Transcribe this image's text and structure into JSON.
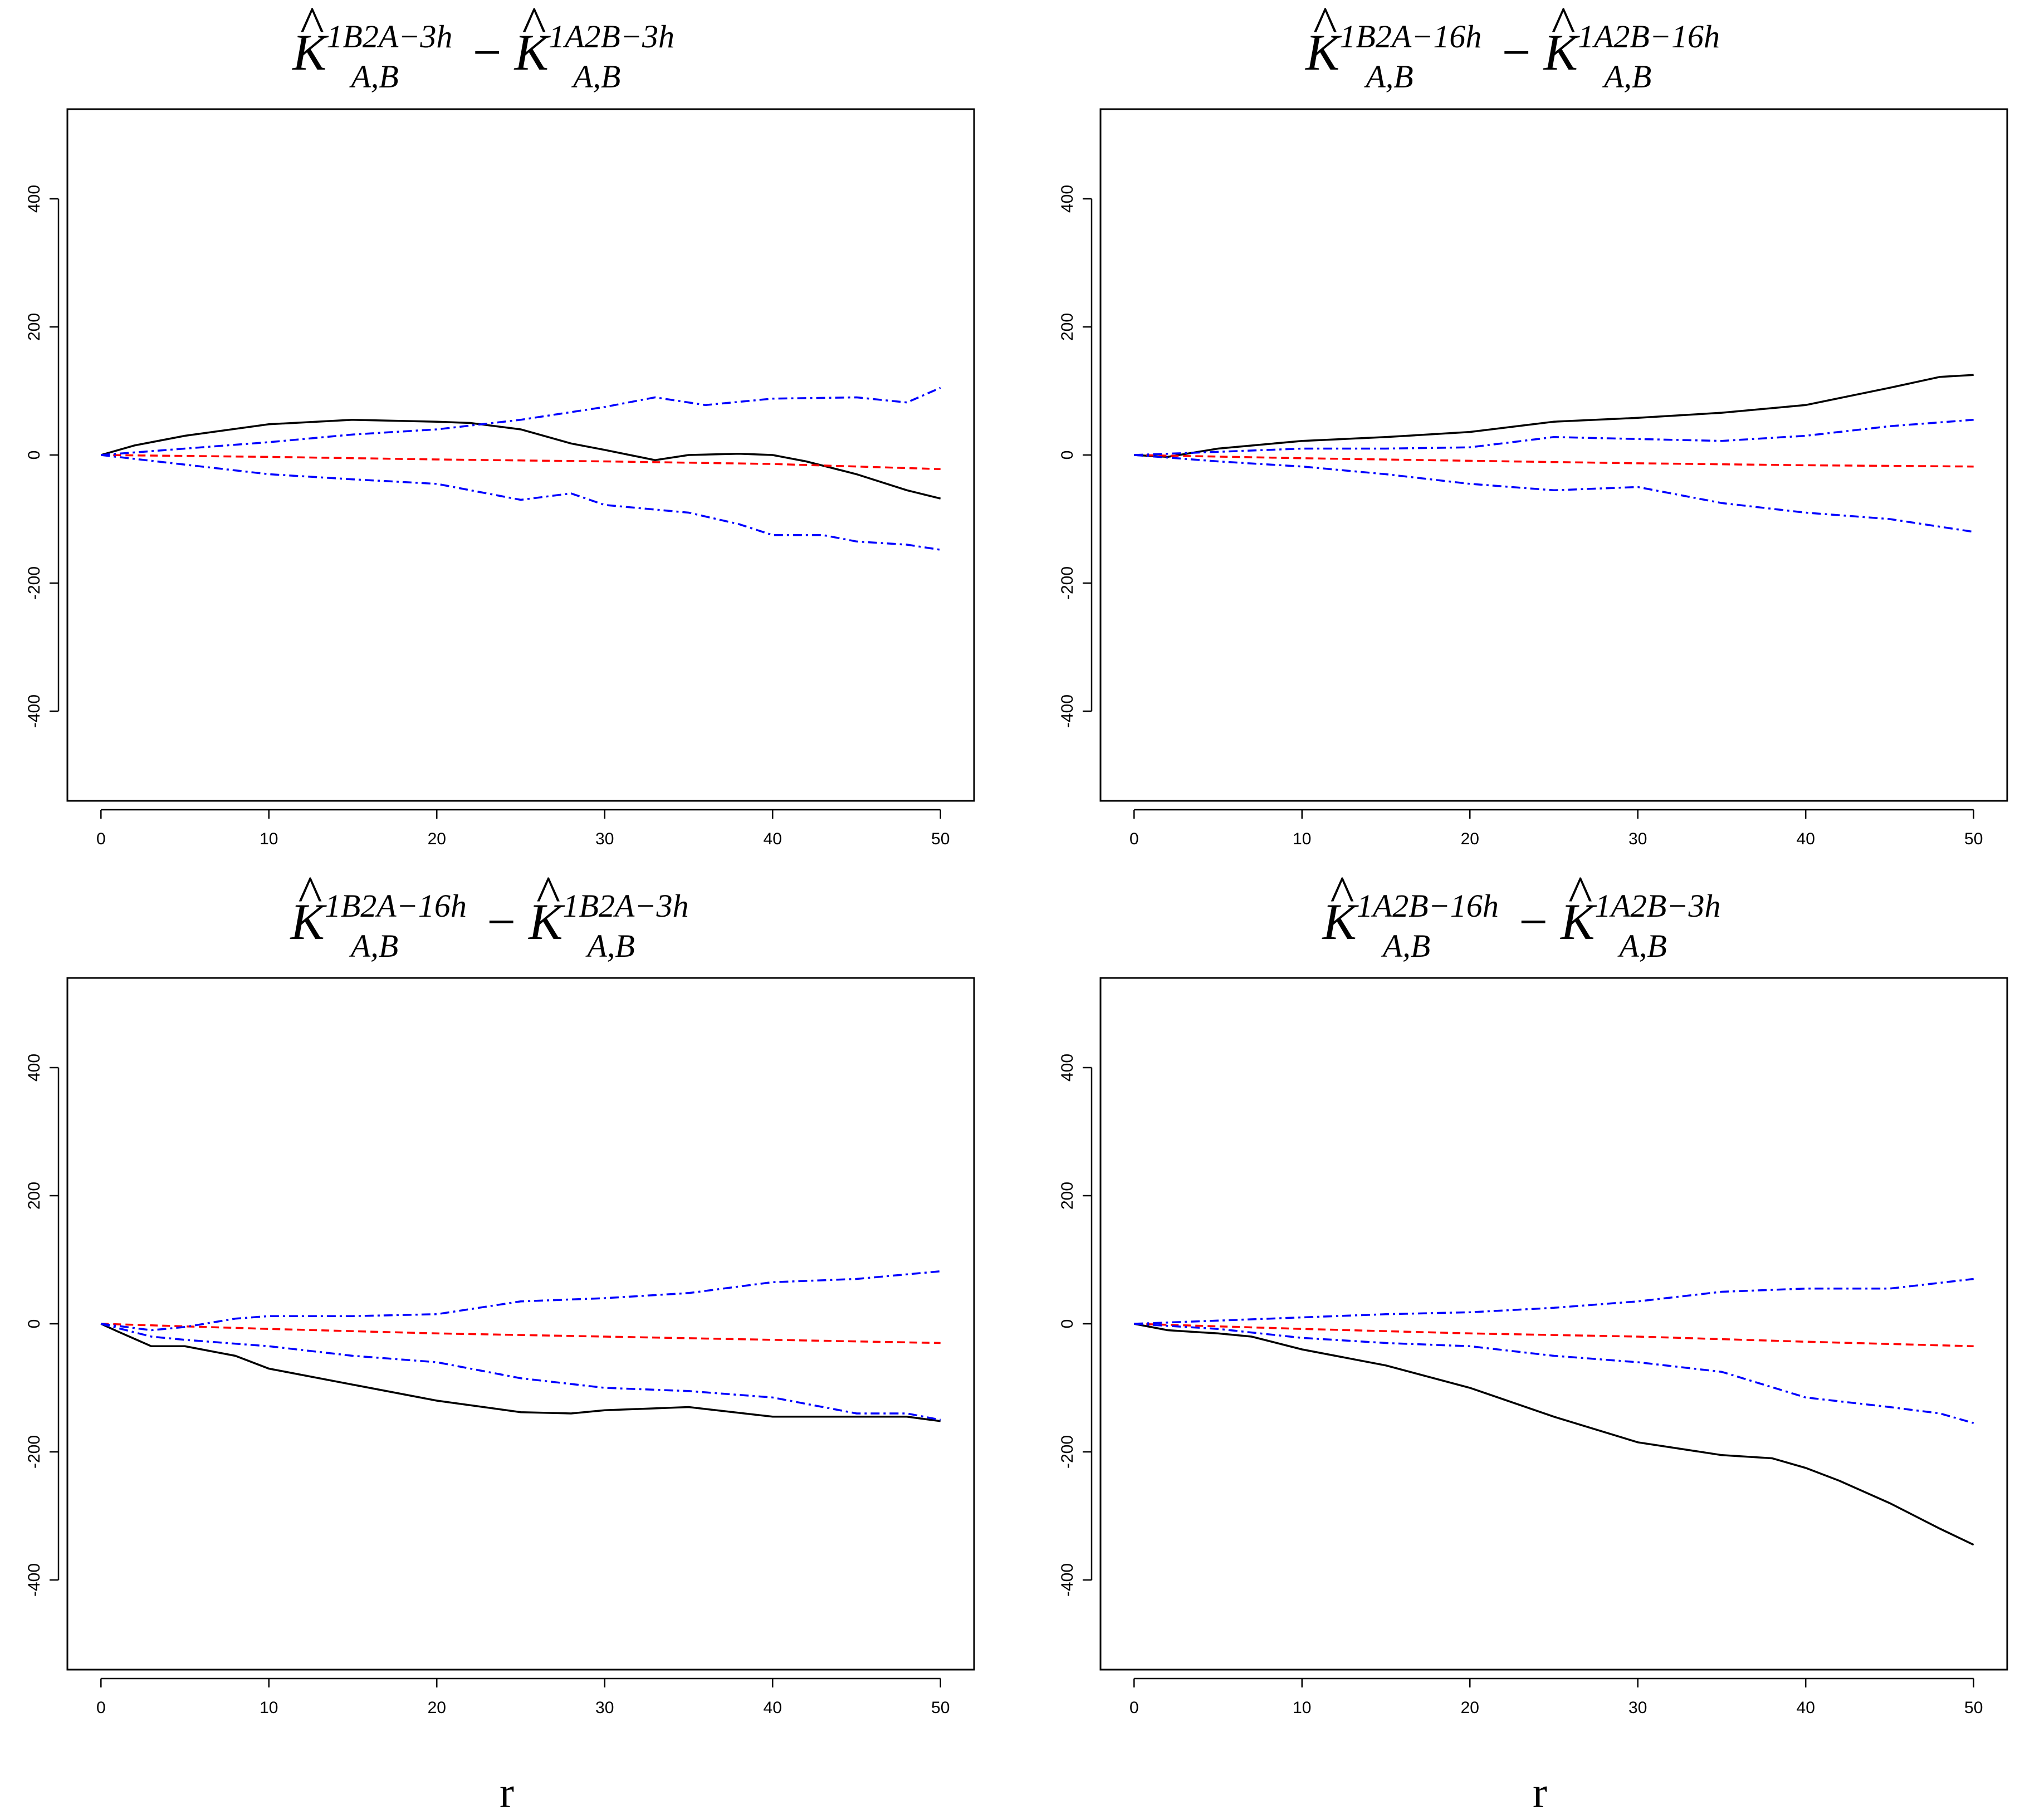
{
  "chart_data": [
    {
      "type": "line",
      "title": {
        "left_sup": "1B2A−3h",
        "right_sup": "1A2B−3h",
        "sub": "A,B",
        "letter": "K",
        "hat": "^",
        "operator": "−"
      },
      "xlabel": "",
      "ylabel": "",
      "xlim": [
        -2,
        52
      ],
      "ylim": [
        -540,
        540
      ],
      "x_ticks": [
        0,
        10,
        20,
        30,
        40,
        50
      ],
      "y_ticks": [
        -400,
        -200,
        0,
        200,
        400
      ],
      "colors": {
        "observed": "#000000",
        "mean": "#ff0000",
        "envelope": "#0000ff"
      },
      "series": [
        {
          "name": "observed",
          "style": "solid",
          "x": [
            0,
            2,
            5,
            10,
            15,
            20,
            22,
            25,
            28,
            30,
            33,
            35,
            38,
            40,
            42,
            45,
            48,
            50
          ],
          "y": [
            0,
            15,
            30,
            48,
            55,
            52,
            50,
            40,
            18,
            8,
            -8,
            0,
            2,
            0,
            -10,
            -30,
            -55,
            -68
          ]
        },
        {
          "name": "mean",
          "style": "dashed",
          "x": [
            0,
            10,
            20,
            30,
            40,
            50
          ],
          "y": [
            0,
            -3,
            -7,
            -10,
            -14,
            -22
          ]
        },
        {
          "name": "envelope-upper",
          "style": "dashdot",
          "x": [
            0,
            5,
            10,
            15,
            20,
            25,
            30,
            33,
            36,
            40,
            45,
            48,
            50
          ],
          "y": [
            0,
            10,
            20,
            32,
            40,
            55,
            75,
            90,
            78,
            88,
            90,
            82,
            105
          ]
        },
        {
          "name": "envelope-lower",
          "style": "dashdot",
          "x": [
            0,
            5,
            10,
            15,
            20,
            25,
            28,
            30,
            35,
            38,
            40,
            43,
            45,
            48,
            50
          ],
          "y": [
            0,
            -15,
            -30,
            -38,
            -45,
            -70,
            -60,
            -78,
            -90,
            -108,
            -125,
            -125,
            -135,
            -140,
            -148
          ]
        }
      ]
    },
    {
      "type": "line",
      "title": {
        "left_sup": "1B2A−16h",
        "right_sup": "1A2B−16h",
        "sub": "A,B",
        "letter": "K",
        "hat": "^",
        "operator": "−"
      },
      "xlabel": "",
      "ylabel": "",
      "xlim": [
        -2,
        52
      ],
      "ylim": [
        -540,
        540
      ],
      "x_ticks": [
        0,
        10,
        20,
        30,
        40,
        50
      ],
      "y_ticks": [
        -400,
        -200,
        0,
        200,
        400
      ],
      "colors": {
        "observed": "#000000",
        "mean": "#ff0000",
        "envelope": "#0000ff"
      },
      "series": [
        {
          "name": "observed",
          "style": "solid",
          "x": [
            0,
            2,
            5,
            10,
            15,
            20,
            25,
            30,
            35,
            40,
            45,
            48,
            50
          ],
          "y": [
            0,
            -3,
            10,
            22,
            28,
            36,
            52,
            58,
            66,
            78,
            105,
            122,
            125
          ]
        },
        {
          "name": "mean",
          "style": "dashed",
          "x": [
            0,
            10,
            20,
            30,
            40,
            50
          ],
          "y": [
            0,
            -5,
            -9,
            -13,
            -16,
            -18
          ]
        },
        {
          "name": "envelope-upper",
          "style": "dashdot",
          "x": [
            0,
            5,
            10,
            15,
            20,
            25,
            30,
            35,
            40,
            45,
            50
          ],
          "y": [
            0,
            5,
            10,
            10,
            12,
            28,
            25,
            22,
            30,
            45,
            55
          ]
        },
        {
          "name": "envelope-lower",
          "style": "dashdot",
          "x": [
            0,
            5,
            10,
            15,
            20,
            25,
            30,
            35,
            40,
            45,
            50
          ],
          "y": [
            0,
            -10,
            -18,
            -30,
            -45,
            -55,
            -50,
            -75,
            -90,
            -100,
            -120
          ]
        }
      ]
    },
    {
      "type": "line",
      "title": {
        "left_sup": "1B2A−16h",
        "right_sup": "1B2A−3h",
        "sub": "A,B",
        "letter": "K",
        "hat": "^",
        "operator": "−"
      },
      "xlabel": "r",
      "ylabel": "",
      "xlim": [
        -2,
        52
      ],
      "ylim": [
        -540,
        540
      ],
      "x_ticks": [
        0,
        10,
        20,
        30,
        40,
        50
      ],
      "y_ticks": [
        -400,
        -200,
        0,
        200,
        400
      ],
      "colors": {
        "observed": "#000000",
        "mean": "#ff0000",
        "envelope": "#0000ff"
      },
      "series": [
        {
          "name": "observed",
          "style": "solid",
          "x": [
            0,
            1,
            3,
            5,
            8,
            10,
            15,
            20,
            25,
            28,
            30,
            35,
            40,
            45,
            48,
            50
          ],
          "y": [
            0,
            -12,
            -35,
            -35,
            -50,
            -70,
            -95,
            -120,
            -138,
            -140,
            -135,
            -130,
            -145,
            -145,
            -145,
            -152
          ]
        },
        {
          "name": "mean",
          "style": "dashed",
          "x": [
            0,
            10,
            20,
            30,
            40,
            50
          ],
          "y": [
            0,
            -8,
            -15,
            -20,
            -25,
            -30
          ]
        },
        {
          "name": "envelope-upper",
          "style": "dashdot",
          "x": [
            0,
            3,
            5,
            8,
            10,
            15,
            20,
            25,
            30,
            35,
            40,
            45,
            50
          ],
          "y": [
            0,
            -10,
            -5,
            8,
            12,
            12,
            15,
            35,
            40,
            48,
            65,
            70,
            82
          ]
        },
        {
          "name": "envelope-lower",
          "style": "dashdot",
          "x": [
            0,
            3,
            5,
            10,
            15,
            20,
            25,
            30,
            35,
            40,
            45,
            48,
            50
          ],
          "y": [
            0,
            -20,
            -25,
            -35,
            -50,
            -60,
            -85,
            -100,
            -105,
            -115,
            -140,
            -140,
            -150
          ]
        }
      ]
    },
    {
      "type": "line",
      "title": {
        "left_sup": "1A2B−16h",
        "right_sup": "1A2B−3h",
        "sub": "A,B",
        "letter": "K",
        "hat": "^",
        "operator": "−"
      },
      "xlabel": "r",
      "ylabel": "",
      "xlim": [
        -2,
        52
      ],
      "ylim": [
        -540,
        540
      ],
      "x_ticks": [
        0,
        10,
        20,
        30,
        40,
        50
      ],
      "y_ticks": [
        -400,
        -200,
        0,
        200,
        400
      ],
      "colors": {
        "observed": "#000000",
        "mean": "#ff0000",
        "envelope": "#0000ff"
      },
      "series": [
        {
          "name": "observed",
          "style": "solid",
          "x": [
            0,
            2,
            5,
            7,
            10,
            15,
            20,
            25,
            30,
            35,
            38,
            40,
            42,
            45,
            48,
            50
          ],
          "y": [
            0,
            -10,
            -15,
            -20,
            -40,
            -65,
            -100,
            -145,
            -185,
            -205,
            -210,
            -225,
            -245,
            -280,
            -320,
            -345
          ]
        },
        {
          "name": "mean",
          "style": "dashed",
          "x": [
            0,
            10,
            20,
            30,
            40,
            50
          ],
          "y": [
            0,
            -8,
            -15,
            -20,
            -28,
            -35
          ]
        },
        {
          "name": "envelope-upper",
          "style": "dashdot",
          "x": [
            0,
            5,
            10,
            15,
            20,
            25,
            30,
            35,
            40,
            45,
            50
          ],
          "y": [
            0,
            5,
            10,
            15,
            18,
            25,
            35,
            50,
            55,
            55,
            70
          ]
        },
        {
          "name": "envelope-lower",
          "style": "dashdot",
          "x": [
            0,
            5,
            10,
            15,
            20,
            25,
            30,
            35,
            40,
            45,
            48,
            50
          ],
          "y": [
            0,
            -8,
            -22,
            -30,
            -35,
            -50,
            -60,
            -75,
            -115,
            -130,
            -140,
            -155
          ]
        }
      ]
    }
  ]
}
